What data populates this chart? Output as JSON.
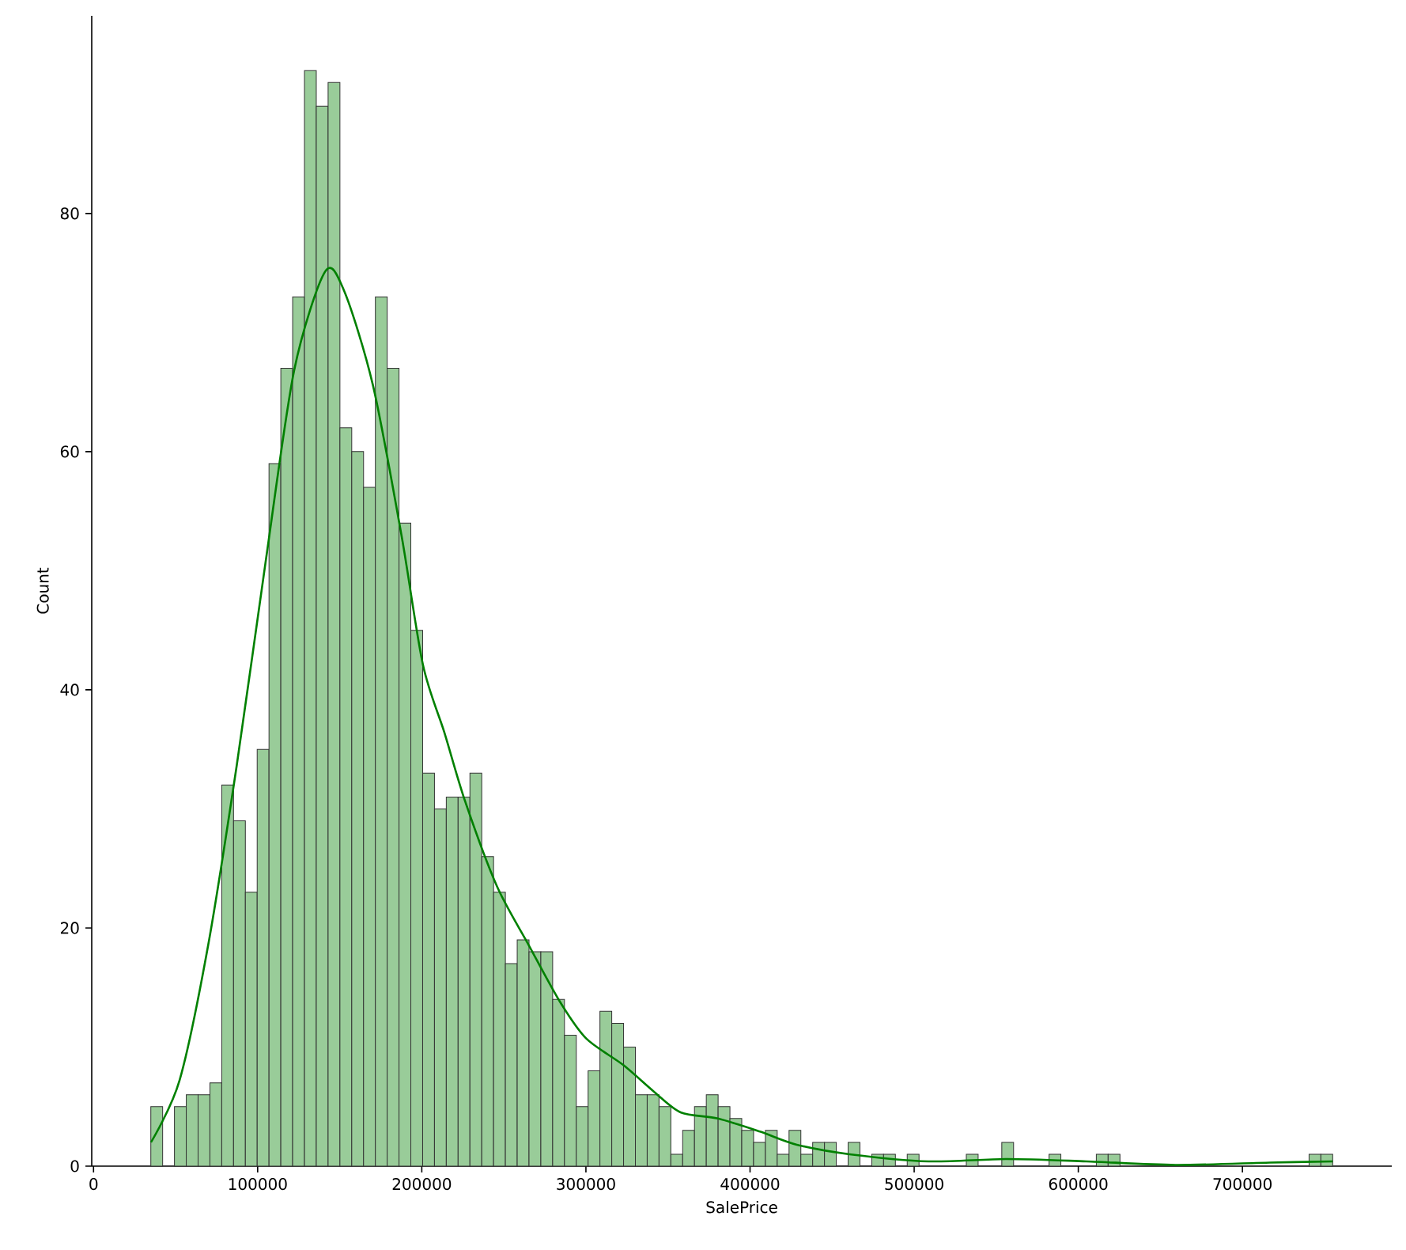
{
  "chart_data": {
    "type": "histogram",
    "xlabel": "SalePrice",
    "ylabel": "Count",
    "bins": [
      34900,
      42101,
      49302,
      56503,
      63704,
      70905,
      78106,
      85307,
      92508,
      99709,
      106910,
      114111,
      121312,
      128513,
      135714,
      142915,
      150116,
      157317,
      164518,
      171719,
      178920,
      186121,
      193322,
      200523,
      207724,
      214925,
      222126,
      229327,
      236528,
      243729,
      250930,
      258131,
      265332,
      272533,
      279734,
      286935,
      294136,
      301337,
      308538,
      315739,
      322940,
      330141,
      337342,
      344543,
      351744,
      358945,
      366146,
      373347,
      380548,
      387749,
      394950,
      402151,
      409352,
      416553,
      423754,
      430955,
      438156,
      445357,
      452558,
      459759,
      466960,
      474161,
      481362,
      488563,
      495764,
      502965,
      510166,
      517367,
      524568,
      531769,
      538970,
      546171,
      553372,
      560573,
      567774,
      574975,
      582176,
      589377,
      596578,
      603779,
      610980,
      618181,
      625382,
      632583,
      639784,
      646985,
      654186,
      661387,
      668588,
      675789,
      682990,
      690191,
      697392,
      704593,
      711794,
      718995,
      726196,
      733397,
      740598,
      747799,
      755000
    ],
    "series": [
      {
        "type": "histogram",
        "color": "#99cc99",
        "values": [
          5,
          0,
          5,
          6,
          6,
          7,
          32,
          29,
          23,
          35,
          59,
          67,
          73,
          92,
          89,
          91,
          62,
          60,
          57,
          73,
          67,
          54,
          45,
          33,
          30,
          31,
          31,
          33,
          26,
          23,
          17,
          19,
          18,
          18,
          14,
          11,
          5,
          8,
          13,
          12,
          10,
          6,
          6,
          5,
          1,
          3,
          5,
          6,
          5,
          4,
          3,
          2,
          3,
          1,
          3,
          1,
          2,
          2,
          0,
          2,
          0,
          1,
          1,
          0,
          1,
          0,
          0,
          0,
          0,
          1,
          0,
          0,
          2,
          0,
          0,
          0,
          1,
          0,
          0,
          0,
          1,
          1,
          0,
          0,
          0,
          0,
          0,
          0,
          0,
          0,
          0,
          0,
          0,
          0,
          0,
          0,
          0,
          0,
          1,
          1
        ]
      },
      {
        "type": "line",
        "color": "#008000",
        "x": [
          35000,
          52400,
          69900,
          87300,
          104700,
          122200,
          141000,
          152700,
          170200,
          187600,
          200700,
          213800,
          226500,
          245800,
          265000,
          284200,
          300300,
          322700,
          341900,
          358000,
          380400,
          406100,
          428500,
          460600,
          508700,
          556700,
          604800,
          659200,
          716900,
          755000
        ],
        "values": [
          2,
          7.2,
          18.6,
          33.7,
          50.6,
          66.8,
          75.1,
          73.5,
          65.6,
          53,
          42.1,
          36.4,
          30.6,
          23.5,
          18.6,
          13.8,
          10.7,
          8.5,
          6.2,
          4.5,
          4.0,
          2.9,
          1.8,
          1.0,
          0.4,
          0.6,
          0.4,
          0.1,
          0.3,
          0.4
        ]
      }
    ],
    "xlim": [
      -1100,
      791000
    ],
    "ylim": [
      0,
      96.6
    ],
    "xticks": [
      0,
      100000,
      200000,
      300000,
      400000,
      500000,
      600000,
      700000
    ],
    "yticks": [
      0,
      20,
      40,
      60,
      80
    ]
  }
}
